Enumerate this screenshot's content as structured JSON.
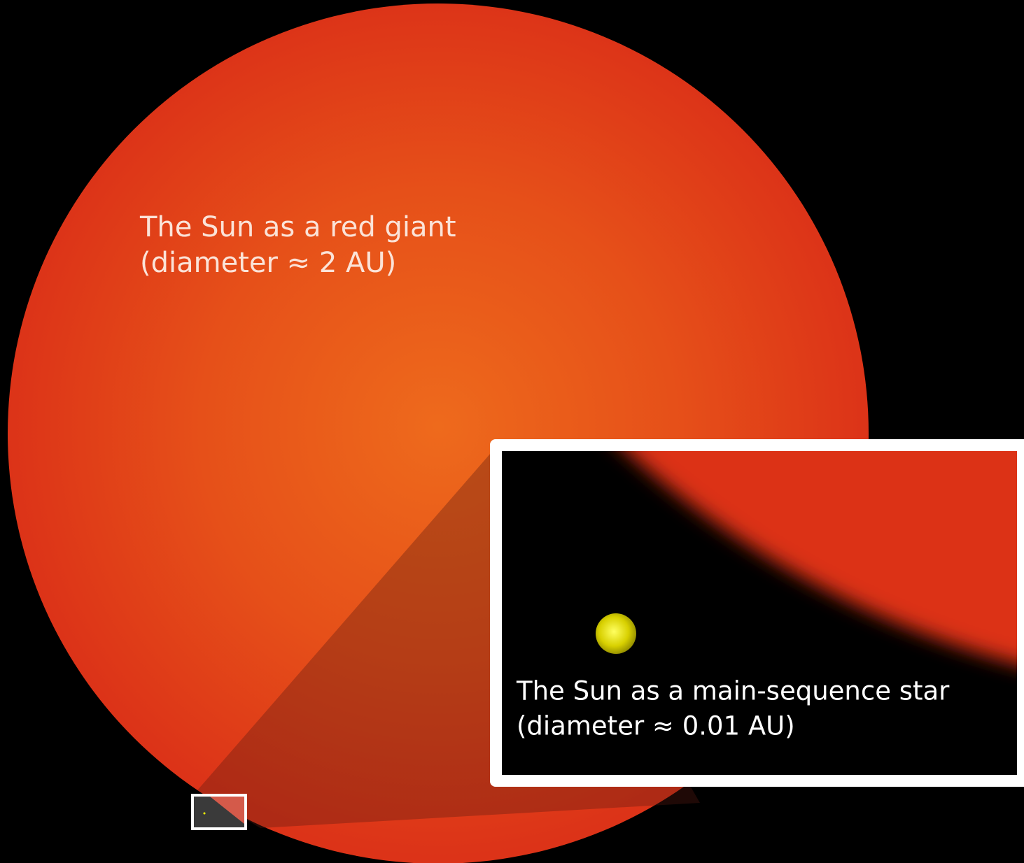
{
  "giant_label": {
    "line1": "The Sun as a red giant",
    "line2": "(diameter ≈ 2 AU)"
  },
  "inset_label": {
    "line1": "The Sun as a main-sequence star",
    "line2": "(diameter ≈ 0.01 AU)"
  }
}
